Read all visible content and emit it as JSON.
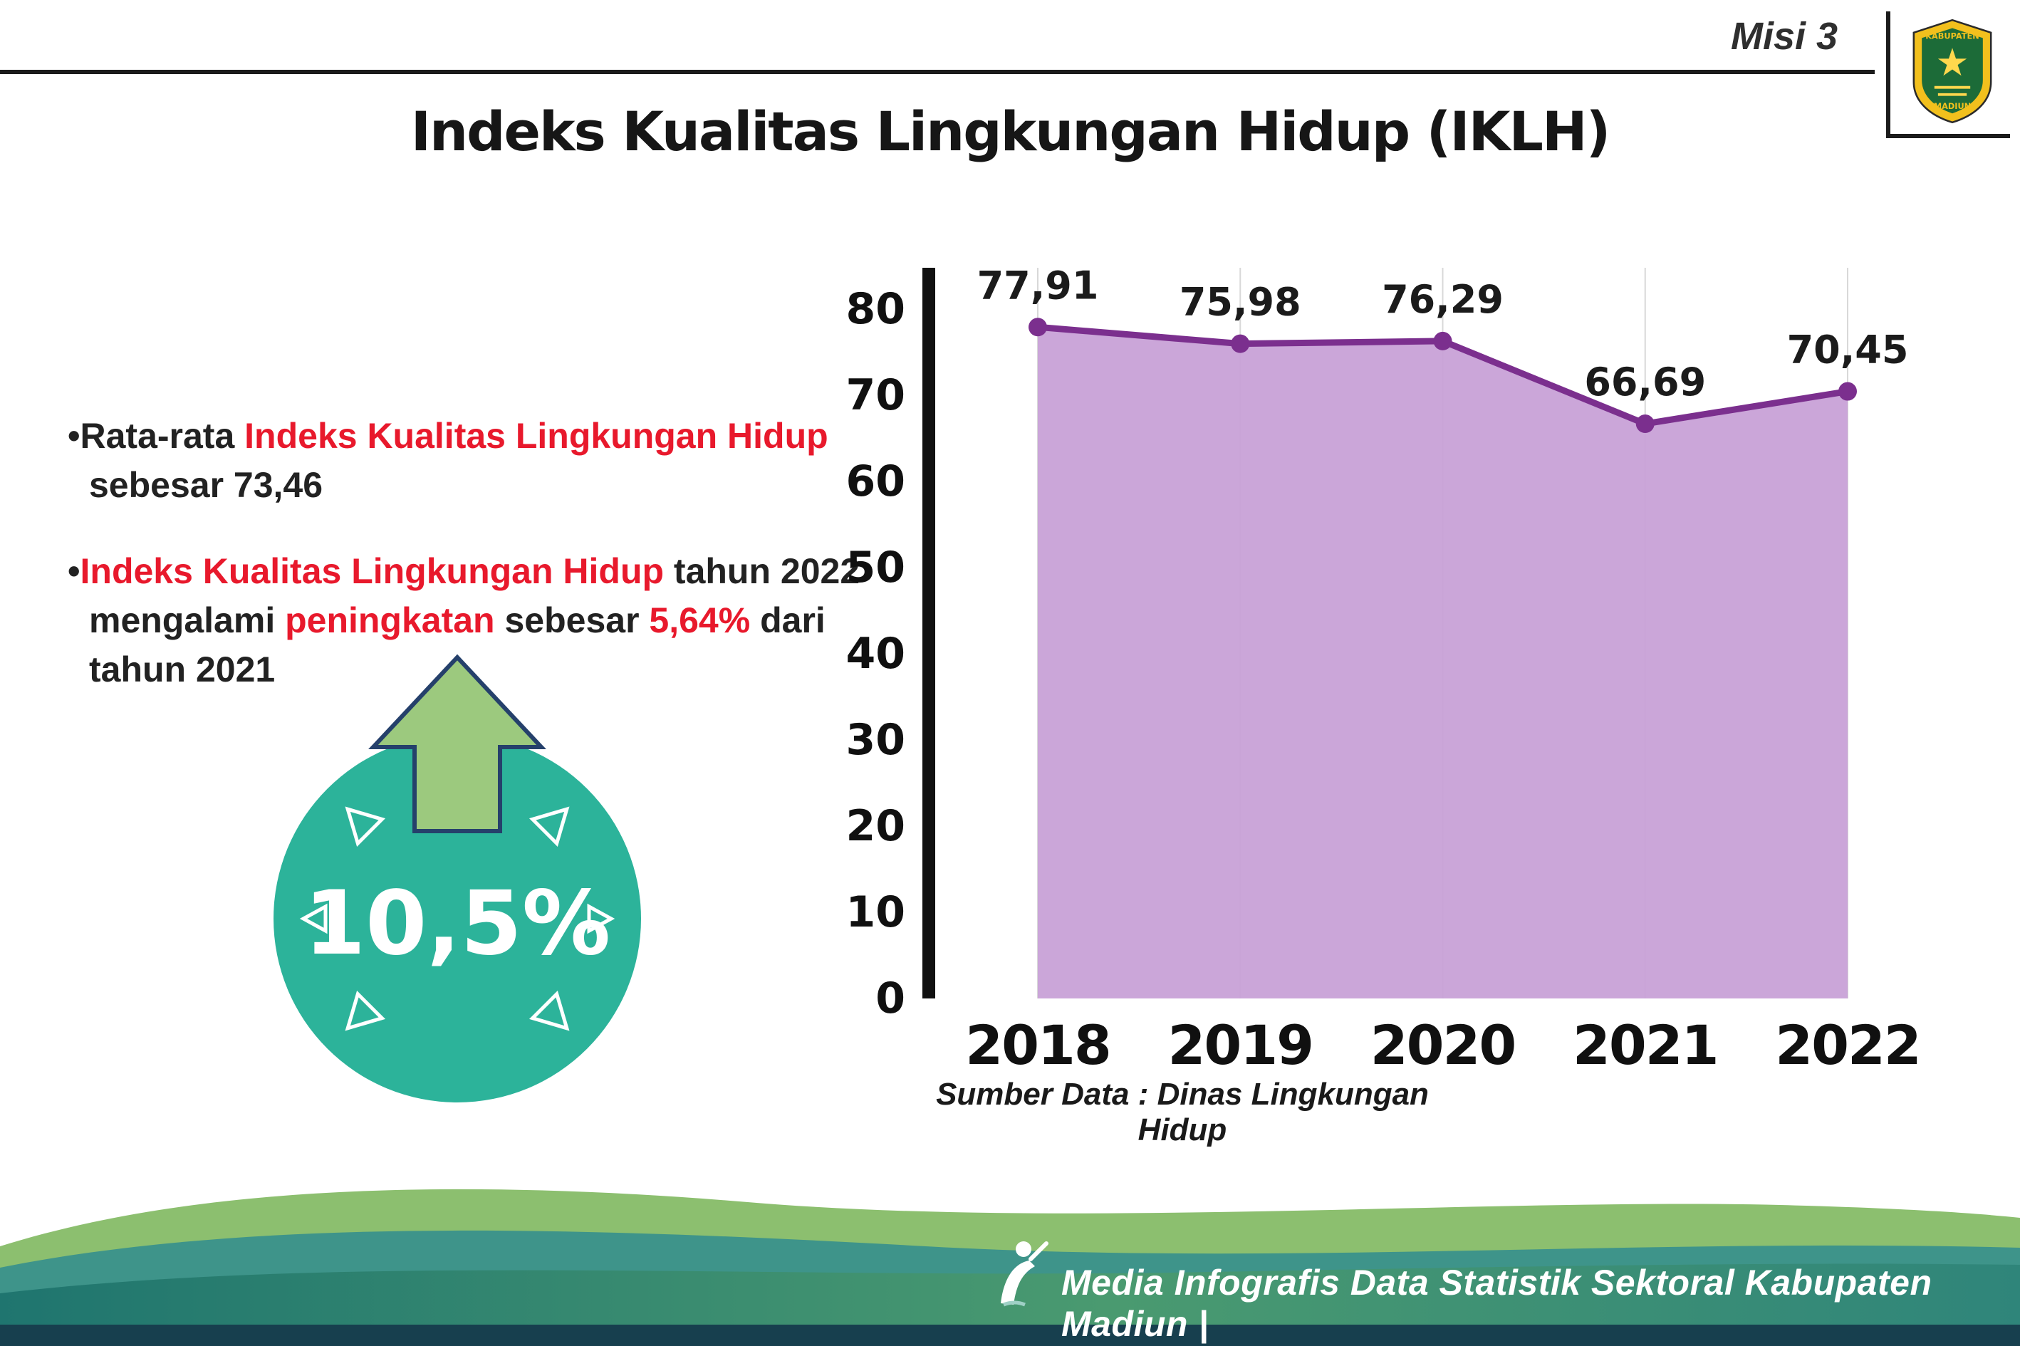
{
  "page": {
    "misi_label": "Misi 3",
    "title": "Indeks Kualitas Lingkungan Hidup (IKLH)"
  },
  "logo": {
    "top_text": "KABUPATEN",
    "bottom_text": "MADIUN"
  },
  "bullets": [
    {
      "segments": [
        {
          "text": "Rata-rata ",
          "style": "normal"
        },
        {
          "text": "Indeks Kualitas Lingkungan Hidup",
          "style": "red"
        },
        {
          "text": " sebesar 73,46",
          "style": "normal"
        }
      ]
    },
    {
      "segments": [
        {
          "text": "Indeks Kualitas Lingkungan Hidup",
          "style": "red"
        },
        {
          "text": " tahun 2022 mengalami ",
          "style": "normal"
        },
        {
          "text": "peningkatan",
          "style": "red"
        },
        {
          "text": " sebesar ",
          "style": "normal"
        },
        {
          "text": "5,64%",
          "style": "red"
        },
        {
          "text": " dari tahun 2021",
          "style": "normal"
        }
      ]
    }
  ],
  "badge": {
    "value": "10,5%"
  },
  "chart_data": {
    "type": "area",
    "title": "",
    "categories": [
      "2018",
      "2019",
      "2020",
      "2021",
      "2022"
    ],
    "values": [
      77.91,
      75.98,
      76.29,
      66.69,
      70.45
    ],
    "value_labels": [
      "77,91",
      "75,98",
      "76,29",
      "66,69",
      "70,45"
    ],
    "ylim": [
      0,
      80
    ],
    "ytick_step": 10,
    "grid": "vertical",
    "legend": "none",
    "fill_color": "#c79fd6",
    "line_color": "#7b2f8e",
    "source_note": "Sumber Data : Dinas Lingkungan Hidup"
  },
  "footer": {
    "caption": "Media Infografis Data Statistik Sektoral Kabupaten Madiun |"
  },
  "colors": {
    "accent_red": "#e8192c",
    "badge_teal": "#2cb39a",
    "arrow_green": "#9cc97e",
    "arrow_outline": "#25406b",
    "area_fill": "#c79fd6",
    "line_purple": "#7b2f8e",
    "footer_teal": "#267a74"
  }
}
